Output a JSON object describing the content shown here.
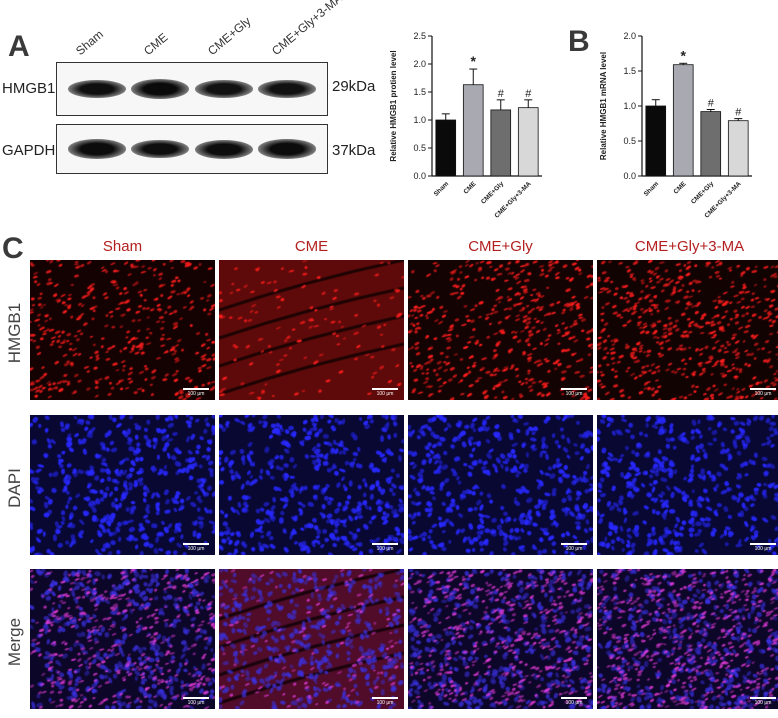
{
  "panels": {
    "a": "A",
    "b": "B",
    "c": "C"
  },
  "blot": {
    "lanes": [
      "Sham",
      "CME",
      "CME+Gly",
      "CME+Gly+3-MA"
    ],
    "rows": [
      {
        "protein": "HMGB1",
        "kda": "29kDa",
        "intensity": [
          0.82,
          1.0,
          0.78,
          0.78
        ]
      },
      {
        "protein": "GAPDH",
        "kda": "37kDa",
        "intensity": [
          0.95,
          0.88,
          0.9,
          0.92
        ]
      }
    ]
  },
  "chart_data": [
    {
      "type": "bar",
      "categories": [
        "Sham",
        "CME",
        "CME+Gly",
        "CME+Gly+3-MA"
      ],
      "values": [
        1.0,
        1.63,
        1.18,
        1.22
      ],
      "errors": [
        0.11,
        0.28,
        0.18,
        0.14
      ],
      "significance": [
        "",
        "*",
        "#",
        "#"
      ],
      "ylabel": "Relative HMGB1 protien level",
      "ylim": [
        0,
        2.5
      ],
      "yticks": [
        "0.0",
        "0.5",
        "1.0",
        "1.5",
        "2.0",
        "2.5"
      ],
      "bar_colors": [
        "#0a0a0a",
        "#a9a9b1",
        "#6e6e6e",
        "#d8d8d8"
      ]
    },
    {
      "type": "bar",
      "categories": [
        "Sham",
        "CME",
        "CME+Gly",
        "CME+Gly+3-MA"
      ],
      "values": [
        1.0,
        1.59,
        0.92,
        0.79
      ],
      "errors": [
        0.09,
        0.02,
        0.03,
        0.03
      ],
      "significance": [
        "",
        "*",
        "#",
        "#"
      ],
      "ylabel": "Relative HMGB1 mRNA level",
      "ylim": [
        0,
        2.0
      ],
      "yticks": [
        "0.0",
        "0.5",
        "1.0",
        "1.5",
        "2.0"
      ],
      "bar_colors": [
        "#0a0a0a",
        "#a9a9b1",
        "#6e6e6e",
        "#d8d8d8"
      ]
    }
  ],
  "micrographs": {
    "columns": [
      "Sham",
      "CME",
      "CME+Gly",
      "CME+Gly+3-MA"
    ],
    "rows": [
      "HMGB1",
      "DAPI",
      "Merge"
    ],
    "scale_label": "100 μm"
  }
}
